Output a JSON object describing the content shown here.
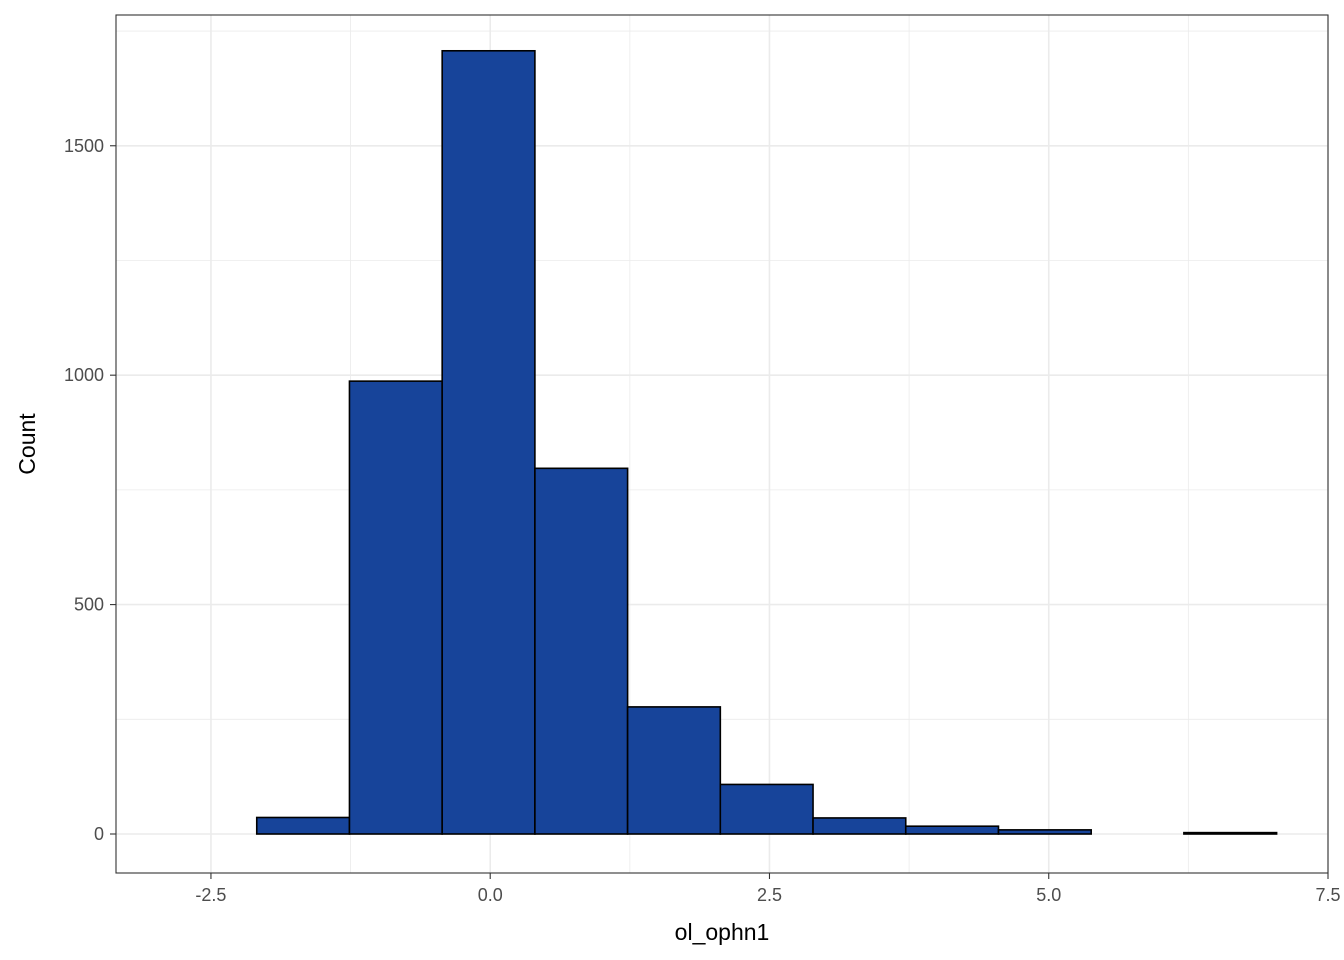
{
  "chart_data": {
    "type": "bar",
    "subtype": "histogram",
    "title": "",
    "xlabel": "ol_ophn1",
    "ylabel": "Count",
    "xlim": [
      -3.35,
      7.5
    ],
    "ylim": [
      -85,
      1785
    ],
    "x_ticks": [
      -2.5,
      0.0,
      2.5,
      5.0,
      7.5
    ],
    "x_tick_labels": [
      "-2.5",
      "0.0",
      "2.5",
      "5.0",
      "7.5"
    ],
    "y_ticks": [
      0,
      500,
      1000,
      1500
    ],
    "y_tick_labels": [
      "0",
      "500",
      "1000",
      "1500"
    ],
    "bins": [
      {
        "x0": -2.91,
        "x1": -2.09,
        "count": 0
      },
      {
        "x0": -2.09,
        "x1": -1.26,
        "count": 36
      },
      {
        "x0": -1.26,
        "x1": -0.43,
        "count": 987
      },
      {
        "x0": -0.43,
        "x1": 0.4,
        "count": 1707
      },
      {
        "x0": 0.4,
        "x1": 1.23,
        "count": 797
      },
      {
        "x0": 1.23,
        "x1": 2.06,
        "count": 277
      },
      {
        "x0": 2.06,
        "x1": 2.89,
        "count": 108
      },
      {
        "x0": 2.89,
        "x1": 3.72,
        "count": 35
      },
      {
        "x0": 3.72,
        "x1": 4.55,
        "count": 17
      },
      {
        "x0": 4.55,
        "x1": 5.38,
        "count": 9
      },
      {
        "x0": 5.38,
        "x1": 6.21,
        "count": 0
      },
      {
        "x0": 6.21,
        "x1": 7.04,
        "count": 3
      }
    ],
    "grid": true,
    "legend": "none",
    "colors": {
      "bar_fill": "#17449a",
      "bar_stroke": "#000000",
      "grid": "#ebebeb",
      "panel_border": "#333333"
    }
  }
}
